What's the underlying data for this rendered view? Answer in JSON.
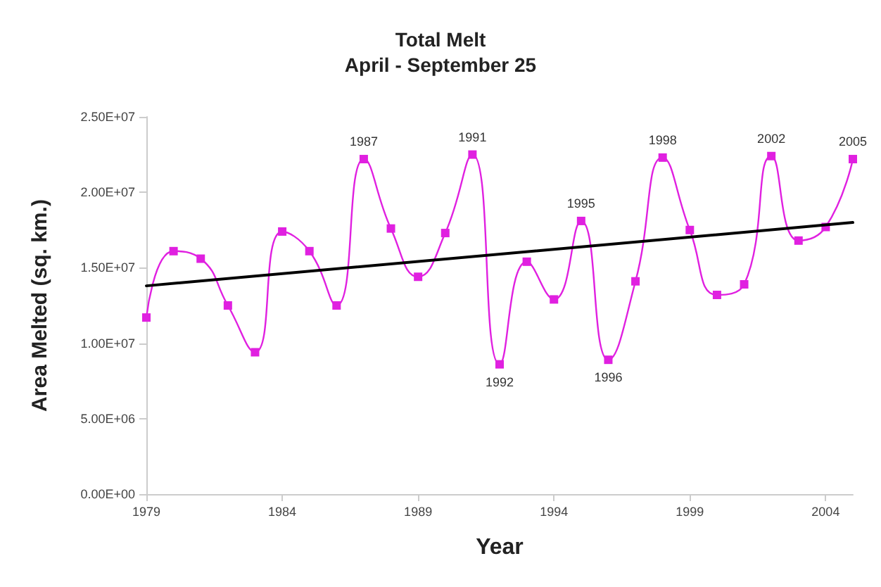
{
  "chart_data": {
    "type": "line",
    "title": "Total Melt",
    "subtitle": "April - September 25",
    "xlabel": "Year",
    "ylabel": "Area Melted (sq. km.)",
    "x": [
      1979,
      1980,
      1981,
      1982,
      1983,
      1984,
      1985,
      1986,
      1987,
      1988,
      1989,
      1990,
      1991,
      1992,
      1993,
      1994,
      1995,
      1996,
      1997,
      1998,
      1999,
      2000,
      2001,
      2002,
      2003,
      2004,
      2005
    ],
    "series": [
      {
        "color": "#e020e0",
        "values": [
          11700000,
          16100000,
          15600000,
          12500000,
          9400000,
          17400000,
          16100000,
          12500000,
          22200000,
          17600000,
          14400000,
          17300000,
          22500000,
          8600000,
          15400000,
          12900000,
          18100000,
          8900000,
          14100000,
          22300000,
          17500000,
          13200000,
          13900000,
          22400000,
          16800000,
          17700000,
          22200000
        ]
      },
      {
        "color": "#000000",
        "x": [
          1979,
          2005
        ],
        "values": [
          13800000,
          18000000
        ],
        "marker": "none"
      }
    ],
    "marker": "square",
    "line_style": "solid",
    "grid": false,
    "xlim": [
      1979,
      2005
    ],
    "xticks": [
      1979,
      1984,
      1989,
      1994,
      1999,
      2004
    ],
    "ylim": [
      0,
      25000000
    ],
    "yticks": [
      {
        "value": 0,
        "label": "0.00E+00"
      },
      {
        "value": 5000000,
        "label": "5.00E+06"
      },
      {
        "value": 10000000,
        "label": "1.00E+07"
      },
      {
        "value": 15000000,
        "label": "1.50E+07"
      },
      {
        "value": 20000000,
        "label": "2.00E+07"
      },
      {
        "value": 25000000,
        "label": "2.50E+07"
      }
    ],
    "annotations": [
      {
        "text": "1987",
        "x": 1987,
        "y": 22200000
      },
      {
        "text": "1991",
        "x": 1991,
        "y": 22500000
      },
      {
        "text": "1992",
        "x": 1992,
        "y": 8600000
      },
      {
        "text": "1995",
        "x": 1995,
        "y": 18100000
      },
      {
        "text": "1996",
        "x": 1996,
        "y": 8900000
      },
      {
        "text": "1998",
        "x": 1998,
        "y": 22300000
      },
      {
        "text": "2002",
        "x": 2002,
        "y": 22400000
      },
      {
        "text": "2005",
        "x": 2005,
        "y": 22200000
      }
    ]
  }
}
